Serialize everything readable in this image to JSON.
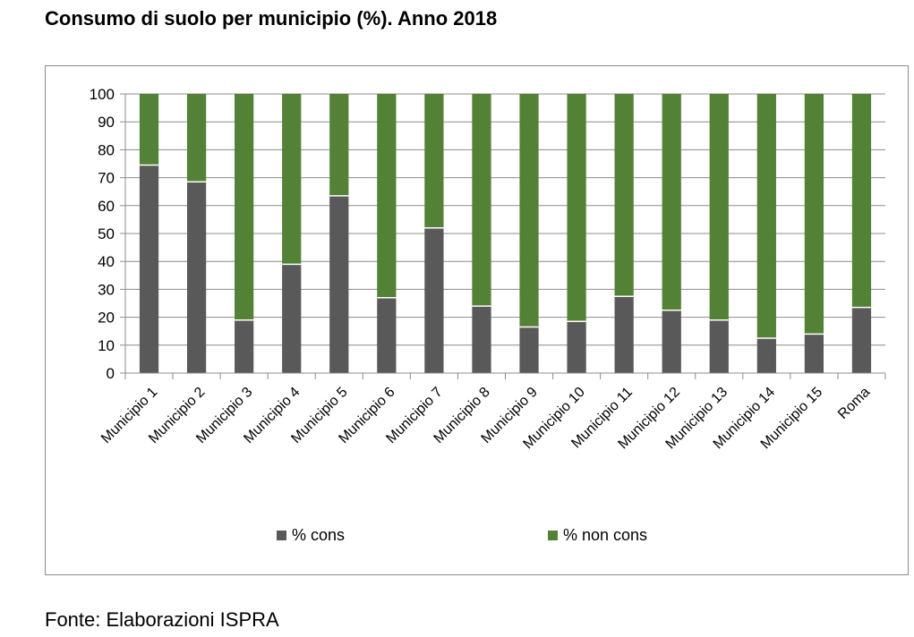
{
  "header": {
    "title": "Consumo di suolo per municipio (%). Anno 2018"
  },
  "footer": {
    "source": "Fonte: Elaborazioni ISPRA"
  },
  "colors": {
    "cons": "#595959",
    "non_cons": "#538135",
    "grid": "#8c8c8c"
  },
  "chart_data": {
    "type": "bar",
    "stacked": true,
    "categories": [
      "Municipio 1",
      "Municipio 2",
      "Municipio 3",
      "Municipio 4",
      "Municipio 5",
      "Municipio 6",
      "Municipio 7",
      "Municipio 8",
      "Municipio 9",
      "Municipio 10",
      "Municipio 11",
      "Municipio 12",
      "Municipio 13",
      "Municipio 14",
      "Municipio 15",
      "Roma"
    ],
    "series": [
      {
        "name": "% cons",
        "color": "#595959",
        "values": [
          74.5,
          68.5,
          19,
          39,
          63.5,
          27,
          52,
          24,
          16.5,
          18.5,
          27.5,
          22.5,
          19,
          12.5,
          14,
          23.5
        ]
      },
      {
        "name": "% non cons",
        "color": "#538135",
        "values": [
          25.5,
          31.5,
          81,
          61,
          36.5,
          73,
          48,
          76,
          83.5,
          81.5,
          72.5,
          77.5,
          81,
          87.5,
          86,
          76.5
        ]
      }
    ],
    "yticks": [
      "0",
      "10",
      "20",
      "30",
      "40",
      "50",
      "60",
      "70",
      "80",
      "90",
      "100"
    ],
    "ylim": [
      0,
      100
    ],
    "grid": true,
    "legend": "bottom"
  }
}
